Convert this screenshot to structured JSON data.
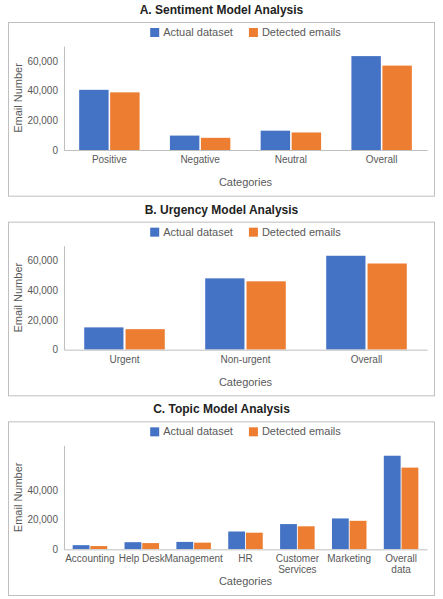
{
  "chart_data": [
    {
      "type": "bar",
      "title": "A.  Sentiment Model Analysis",
      "x_label": "Categories",
      "y_label": "Email Number",
      "categories": [
        "Positive",
        "Negative",
        "Neutral",
        "Overall"
      ],
      "series": [
        {
          "name": "Actual dataset",
          "color": "#4472c4",
          "values": [
            40500,
            9700,
            13000,
            63200
          ]
        },
        {
          "name": "Detected emails",
          "color": "#ed7d31",
          "values": [
            38800,
            8200,
            11800,
            56800
          ]
        }
      ],
      "ylim": [
        0,
        70000
      ],
      "yticks": [
        0,
        {
          "value": 20000,
          "label": "20,000"
        },
        {
          "value": 40000,
          "label": "40,000"
        },
        {
          "value": 60000,
          "label": "60,000"
        }
      ],
      "grid": false,
      "legend": "top"
    },
    {
      "type": "bar",
      "title": "B.  Urgency Model Analysis",
      "x_label": "Categories",
      "y_label": "Email Number",
      "categories": [
        "Urgent",
        "Non-urgent",
        "Overall"
      ],
      "series": [
        {
          "name": "Actual dataset",
          "color": "#4472c4",
          "values": [
            15000,
            48000,
            63200
          ]
        },
        {
          "name": "Detected emails",
          "color": "#ed7d31",
          "values": [
            13800,
            46000,
            58000
          ]
        }
      ],
      "ylim": [
        0,
        70000
      ],
      "yticks": [
        0,
        {
          "value": 20000,
          "label": "20,000"
        },
        {
          "value": 40000,
          "label": "40,000"
        },
        {
          "value": 60000,
          "label": "60,000"
        }
      ],
      "grid": false,
      "legend": "top"
    },
    {
      "type": "bar",
      "title": "C.  Topic Model Analysis",
      "x_label": "Categories",
      "y_label": "Email Number",
      "categories": [
        "Accounting",
        "Help Desk",
        "Management",
        "HR",
        "Customer Services",
        "Marketing",
        "Overall data"
      ],
      "series": [
        {
          "name": "Actual dataset",
          "color": "#4472c4",
          "values": [
            2800,
            4800,
            5000,
            12000,
            17000,
            20800,
            63000
          ]
        },
        {
          "name": "Detected emails",
          "color": "#ed7d31",
          "values": [
            2200,
            4200,
            4500,
            11200,
            15500,
            19200,
            55000
          ]
        }
      ],
      "ylim": [
        0,
        70000
      ],
      "yticks": [
        0,
        {
          "value": 20000,
          "label": "20,000"
        },
        {
          "value": 40000,
          "label": "40,000"
        }
      ],
      "grid": false,
      "legend": "top"
    }
  ]
}
